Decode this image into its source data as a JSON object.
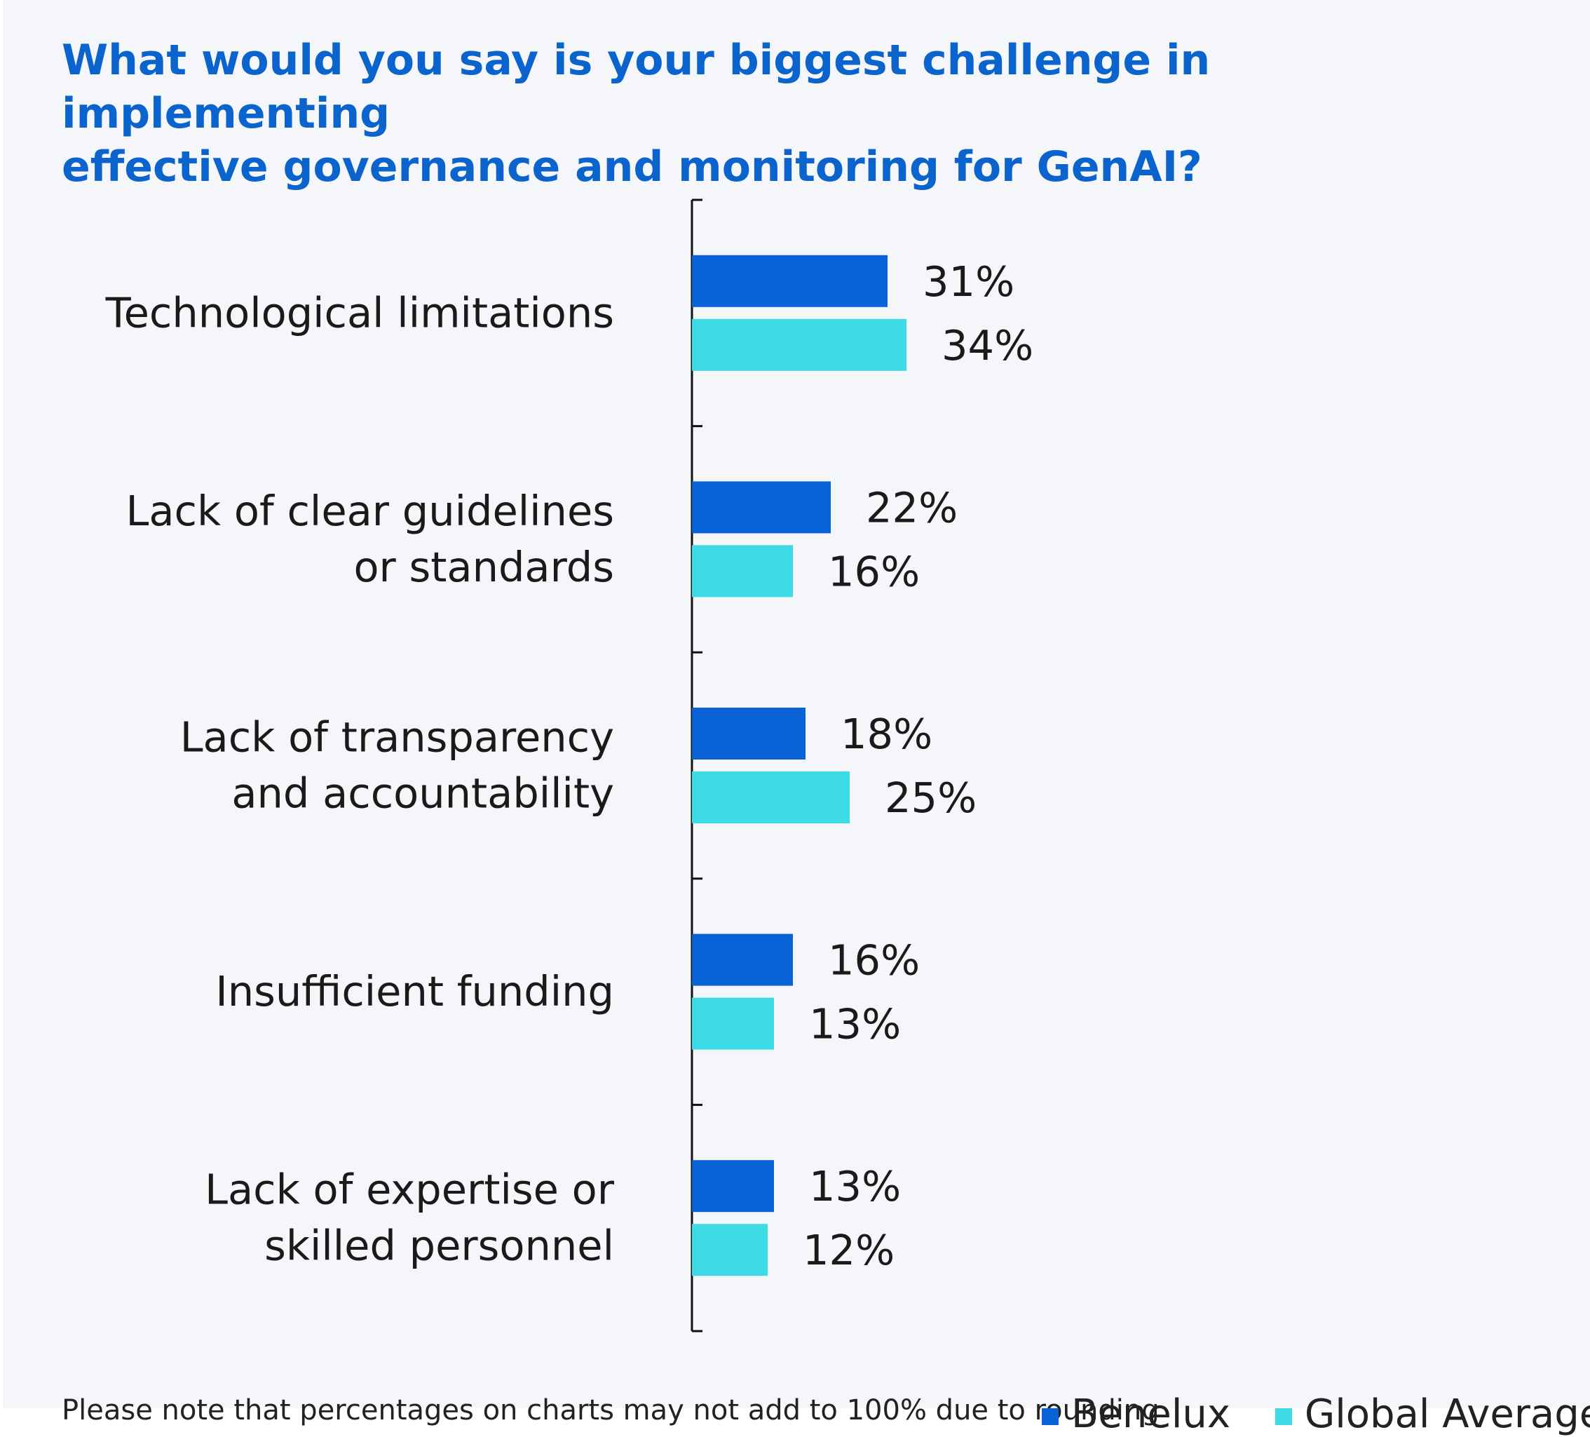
{
  "title": {
    "line1": "What would you say is your biggest challenge in implementing",
    "line2": "effective governance and monitoring for GenAI?"
  },
  "footnote": "Please note that percentages on charts may not add to 100% due to rounding",
  "colors": {
    "accent": "#0b63ce",
    "benelux": "#0a63d6",
    "global": "#3ddbe5",
    "background": "#f5f6f9"
  },
  "chart_data": {
    "type": "bar",
    "orientation": "horizontal",
    "categories": [
      [
        "Technological limitations"
      ],
      [
        "Lack of clear guidelines",
        "or standards"
      ],
      [
        "Lack of transparency",
        "and accountability"
      ],
      [
        "Insufficient funding"
      ],
      [
        "Lack of expertise or",
        "skilled personnel"
      ]
    ],
    "series": [
      {
        "name": "Benelux",
        "values": [
          31,
          22,
          18,
          16,
          13
        ],
        "color": "#0a63d6"
      },
      {
        "name": "Global Average",
        "values": [
          34,
          16,
          25,
          13,
          12
        ],
        "color": "#3ddbe5"
      }
    ],
    "value_suffix": "%",
    "grid": false,
    "legend_position": "bottom-right"
  }
}
